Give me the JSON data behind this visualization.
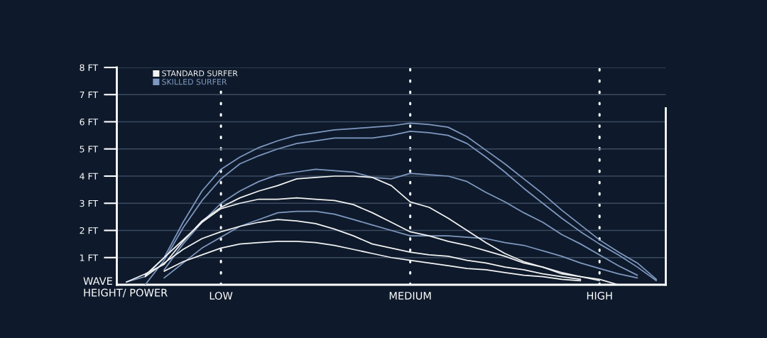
{
  "chart_data": {
    "type": "line",
    "xlabel": "WAVE\nHEIGHT/ POWER",
    "categories": [
      null,
      null,
      null,
      null,
      null,
      "LOW",
      null,
      null,
      null,
      null,
      null,
      null,
      null,
      null,
      null,
      "MEDIUM",
      null,
      null,
      null,
      null,
      null,
      null,
      null,
      null,
      null,
      "HIGH",
      null,
      null,
      null
    ],
    "ylim": [
      0,
      8
    ],
    "yticks": [
      {
        "value": 1,
        "label": "1 FT"
      },
      {
        "value": 2,
        "label": "2 FT"
      },
      {
        "value": 3,
        "label": "3 FT"
      },
      {
        "value": 4,
        "label": "4 FT"
      },
      {
        "value": 5,
        "label": "5 FT"
      },
      {
        "value": 6,
        "label": "6 FT"
      },
      {
        "value": 7,
        "label": "7 FT"
      },
      {
        "value": 8,
        "label": "8 FT"
      }
    ],
    "grid": true,
    "legend": "top left",
    "series": [
      {
        "name": "STANDARD SURFER",
        "color": "#f2f2f2",
        "values": [
          0.1,
          0.4,
          0.75,
          1.6,
          2.35,
          2.85,
          3.2,
          3.45,
          3.65,
          3.9,
          3.95,
          4.0,
          4.0,
          3.95,
          3.65,
          3.05,
          2.85,
          2.45,
          2.0,
          1.55,
          1.15,
          0.85,
          0.65,
          0.4,
          0.3,
          0.2,
          0,
          null,
          null
        ]
      },
      {
        "color": "#f2f2f2",
        "values": [
          null,
          0.35,
          1.0,
          1.65,
          2.3,
          2.8,
          3.0,
          3.15,
          3.15,
          3.2,
          3.15,
          3.1,
          2.95,
          2.65,
          2.3,
          1.95,
          1.8,
          1.6,
          1.45,
          1.25,
          1.05,
          0.8,
          0.65,
          0.45,
          0.3,
          0.15,
          null,
          null,
          null
        ]
      },
      {
        "color": "#f2f2f2",
        "values": [
          null,
          0.3,
          0.8,
          1.3,
          1.7,
          1.95,
          2.15,
          2.3,
          2.4,
          2.35,
          2.25,
          2.05,
          1.8,
          1.5,
          1.35,
          1.2,
          1.1,
          1.05,
          0.9,
          0.8,
          0.65,
          0.55,
          0.4,
          0.3,
          0.2,
          null,
          null,
          null,
          null
        ]
      },
      {
        "color": "#f2f2f2",
        "values": [
          null,
          null,
          0.5,
          0.85,
          1.1,
          1.35,
          1.5,
          1.55,
          1.6,
          1.6,
          1.55,
          1.45,
          1.3,
          1.15,
          1.0,
          0.9,
          0.8,
          0.7,
          0.6,
          0.55,
          0.45,
          0.35,
          0.3,
          0.2,
          0.15,
          null,
          null,
          null,
          null
        ]
      },
      {
        "name": "SKILLED SURFER",
        "color": "#7f98c0",
        "values": [
          0.1,
          0.3,
          1.0,
          2.3,
          3.45,
          4.25,
          4.7,
          5.05,
          5.3,
          5.5,
          5.6,
          5.7,
          5.75,
          5.8,
          5.85,
          5.95,
          5.9,
          5.8,
          5.45,
          4.95,
          4.45,
          3.9,
          3.35,
          2.75,
          2.2,
          1.65,
          1.2,
          0.8,
          0.2
        ]
      },
      {
        "color": "#7f98c0",
        "values": [
          null,
          0,
          0.9,
          2.1,
          3.1,
          3.9,
          4.45,
          4.75,
          5.0,
          5.2,
          5.3,
          5.4,
          5.4,
          5.4,
          5.5,
          5.65,
          5.6,
          5.5,
          5.2,
          4.7,
          4.15,
          3.55,
          3.0,
          2.45,
          1.95,
          1.5,
          1.1,
          0.65,
          0.15
        ]
      },
      {
        "color": "#7f98c0",
        "values": [
          null,
          null,
          0.55,
          1.5,
          2.3,
          3.0,
          3.45,
          3.8,
          4.05,
          4.15,
          4.25,
          4.2,
          4.15,
          3.95,
          3.9,
          4.1,
          4.05,
          4.0,
          3.8,
          3.4,
          3.05,
          2.65,
          2.3,
          1.85,
          1.5,
          1.1,
          0.7,
          0.35,
          null
        ]
      },
      {
        "color": "#7f98c0",
        "values": [
          null,
          null,
          0.25,
          0.8,
          1.35,
          1.75,
          2.15,
          2.4,
          2.65,
          2.7,
          2.7,
          2.6,
          2.4,
          2.2,
          2.0,
          1.8,
          1.8,
          1.8,
          1.75,
          1.7,
          1.55,
          1.45,
          1.25,
          1.05,
          0.8,
          0.6,
          0.4,
          0.25,
          null
        ]
      }
    ]
  }
}
